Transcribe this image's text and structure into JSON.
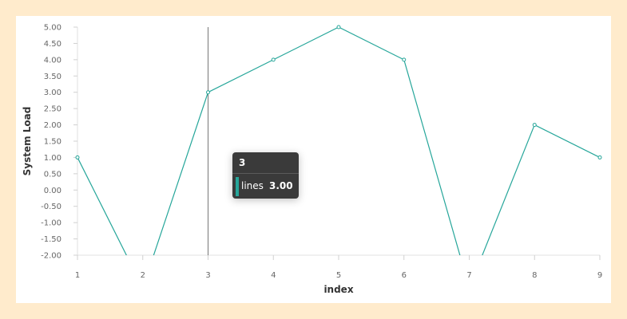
{
  "chart_data": {
    "type": "line",
    "xlabel": "index",
    "ylabel": "System Load",
    "x": [
      1,
      2,
      3,
      4,
      5,
      6,
      7,
      8,
      9
    ],
    "x_ticks": [
      "1",
      "2",
      "3",
      "4",
      "5",
      "6",
      "7",
      "8",
      "9"
    ],
    "y_ticks": [
      "5.00",
      "4.50",
      "4.00",
      "3.50",
      "3.00",
      "2.50",
      "2.00",
      "1.50",
      "1.00",
      "0.50",
      "0.00",
      "-0.50",
      "-1.00",
      "-1.50",
      "-2.00"
    ],
    "ylim": [
      -2,
      5
    ],
    "xlim": [
      1,
      9
    ],
    "series": [
      {
        "name": "lines",
        "color": "#26a69a",
        "values": [
          1,
          -3,
          3,
          4,
          5,
          4,
          -3,
          2,
          1
        ]
      }
    ],
    "grid": false
  },
  "tooltip": {
    "title": "3",
    "series_name": "lines",
    "value": "3.00",
    "hover_x": 3
  }
}
